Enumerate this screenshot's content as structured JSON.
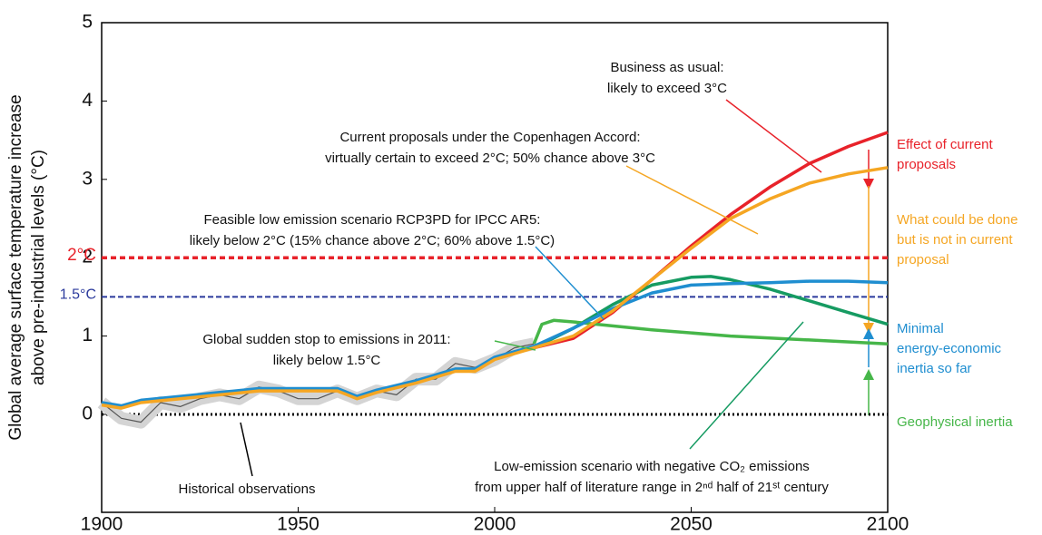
{
  "chart_data": {
    "type": "line",
    "ylabel": [
      "Global average surface temperature increase",
      "above pre-industrial levels (°C)"
    ],
    "xlim": [
      1900,
      2100
    ],
    "xticks": [
      1900,
      1950,
      2000,
      2050,
      2100
    ],
    "ylim": [
      -1.25,
      5
    ],
    "yticks": [
      0,
      1,
      2,
      3,
      4,
      5
    ],
    "hlines": [
      {
        "label": "2°C",
        "value": 2,
        "color": "#e8222a"
      },
      {
        "label": "1.5°C",
        "value": 1.5,
        "color": "#2b3a9c"
      }
    ],
    "baseline": 0,
    "series": [
      {
        "name": "Historical observations",
        "color": "#555555",
        "x": [
          1900,
          1905,
          1910,
          1915,
          1920,
          1925,
          1930,
          1935,
          1940,
          1945,
          1950,
          1955,
          1960,
          1965,
          1970,
          1975,
          1980,
          1985,
          1990,
          1995,
          2000,
          2005,
          2010
        ],
        "values": [
          0.15,
          -0.05,
          -0.1,
          0.15,
          0.1,
          0.2,
          0.25,
          0.2,
          0.35,
          0.3,
          0.2,
          0.2,
          0.3,
          0.2,
          0.3,
          0.25,
          0.45,
          0.45,
          0.65,
          0.6,
          0.7,
          0.85,
          0.9
        ]
      },
      {
        "name": "Business as usual",
        "color": "#e8222a",
        "x": [
          2010,
          2020,
          2030,
          2040,
          2050,
          2060,
          2070,
          2080,
          2090,
          2100
        ],
        "values": [
          0.85,
          0.97,
          1.3,
          1.72,
          2.15,
          2.55,
          2.9,
          3.2,
          3.42,
          3.6
        ]
      },
      {
        "name": "Low-emission scenario with negative CO₂ emissions",
        "color": "#169b62",
        "x": [
          2010,
          2020,
          2030,
          2040,
          2050,
          2055,
          2060,
          2070,
          2080,
          2090,
          2100
        ],
        "values": [
          0.85,
          1.1,
          1.4,
          1.65,
          1.75,
          1.76,
          1.72,
          1.6,
          1.45,
          1.3,
          1.15
        ]
      },
      {
        "name": "Global sudden stop to emissions in 2011",
        "color": "#46b649",
        "x": [
          2010,
          2012,
          2015,
          2020,
          2040,
          2060,
          2080,
          2100
        ],
        "values": [
          0.9,
          1.15,
          1.2,
          1.18,
          1.08,
          1.0,
          0.95,
          0.9
        ]
      },
      {
        "name": "Feasible low emission scenario RCP3PD for IPCC AR5",
        "color": "#1f8ed0",
        "x": [
          1900,
          1905,
          1910,
          1920,
          1930,
          1940,
          1950,
          1960,
          1965,
          1970,
          1980,
          1990,
          1995,
          2000,
          2010,
          2020,
          2030,
          2040,
          2050,
          2060,
          2070,
          2080,
          2090,
          2100
        ],
        "values": [
          0.15,
          0.11,
          0.18,
          0.23,
          0.28,
          0.33,
          0.33,
          0.33,
          0.23,
          0.31,
          0.43,
          0.58,
          0.58,
          0.73,
          0.87,
          1.1,
          1.35,
          1.55,
          1.65,
          1.67,
          1.68,
          1.7,
          1.7,
          1.68
        ]
      },
      {
        "name": "Current proposals under the Copenhagen Accord",
        "color": "#f5a623",
        "x": [
          1900,
          1905,
          1910,
          1920,
          1930,
          1940,
          1950,
          1960,
          1965,
          1970,
          1980,
          1990,
          1995,
          2000,
          2010,
          2020,
          2030,
          2040,
          2050,
          2060,
          2070,
          2080,
          2090,
          2100
        ],
        "values": [
          0.12,
          0.08,
          0.15,
          0.2,
          0.25,
          0.3,
          0.3,
          0.3,
          0.2,
          0.28,
          0.4,
          0.55,
          0.55,
          0.7,
          0.85,
          1.0,
          1.32,
          1.72,
          2.12,
          2.5,
          2.75,
          2.95,
          3.07,
          3.15
        ]
      }
    ],
    "annotations": [
      {
        "lines": [
          "Business as usual:",
          "likely to exceed 3°C"
        ]
      },
      {
        "lines": [
          "Current proposals under the Copenhagen Accord:",
          "virtually certain to exceed 2°C; 50% chance above 3°C"
        ]
      },
      {
        "lines": [
          "Feasible low emission scenario RCP3PD for IPCC AR5:",
          "likely below 2°C (15% chance above 2°C; 60% above 1.5°C)"
        ]
      },
      {
        "lines": [
          "Global sudden stop to emissions in 2011:",
          "likely below 1.5°C"
        ]
      },
      {
        "lines": [
          "Historical observations"
        ]
      },
      {
        "lines": [
          "Low-emission scenario with negative CO₂ emissions",
          "from upper half of literature range in 2ⁿᵈ half of 21ˢᵗ century"
        ]
      }
    ],
    "side_labels": [
      {
        "lines": [
          "Effect of current",
          "proposals"
        ],
        "color": "#e8222a"
      },
      {
        "lines": [
          "What could be done",
          "but is not in current",
          "proposal"
        ],
        "color": "#f5a623"
      },
      {
        "lines": [
          "Minimal",
          "energy-economic",
          "inertia so far"
        ],
        "color": "#1f8ed0"
      },
      {
        "lines": [
          "Geophysical inertia"
        ],
        "color": "#46b649"
      }
    ]
  }
}
